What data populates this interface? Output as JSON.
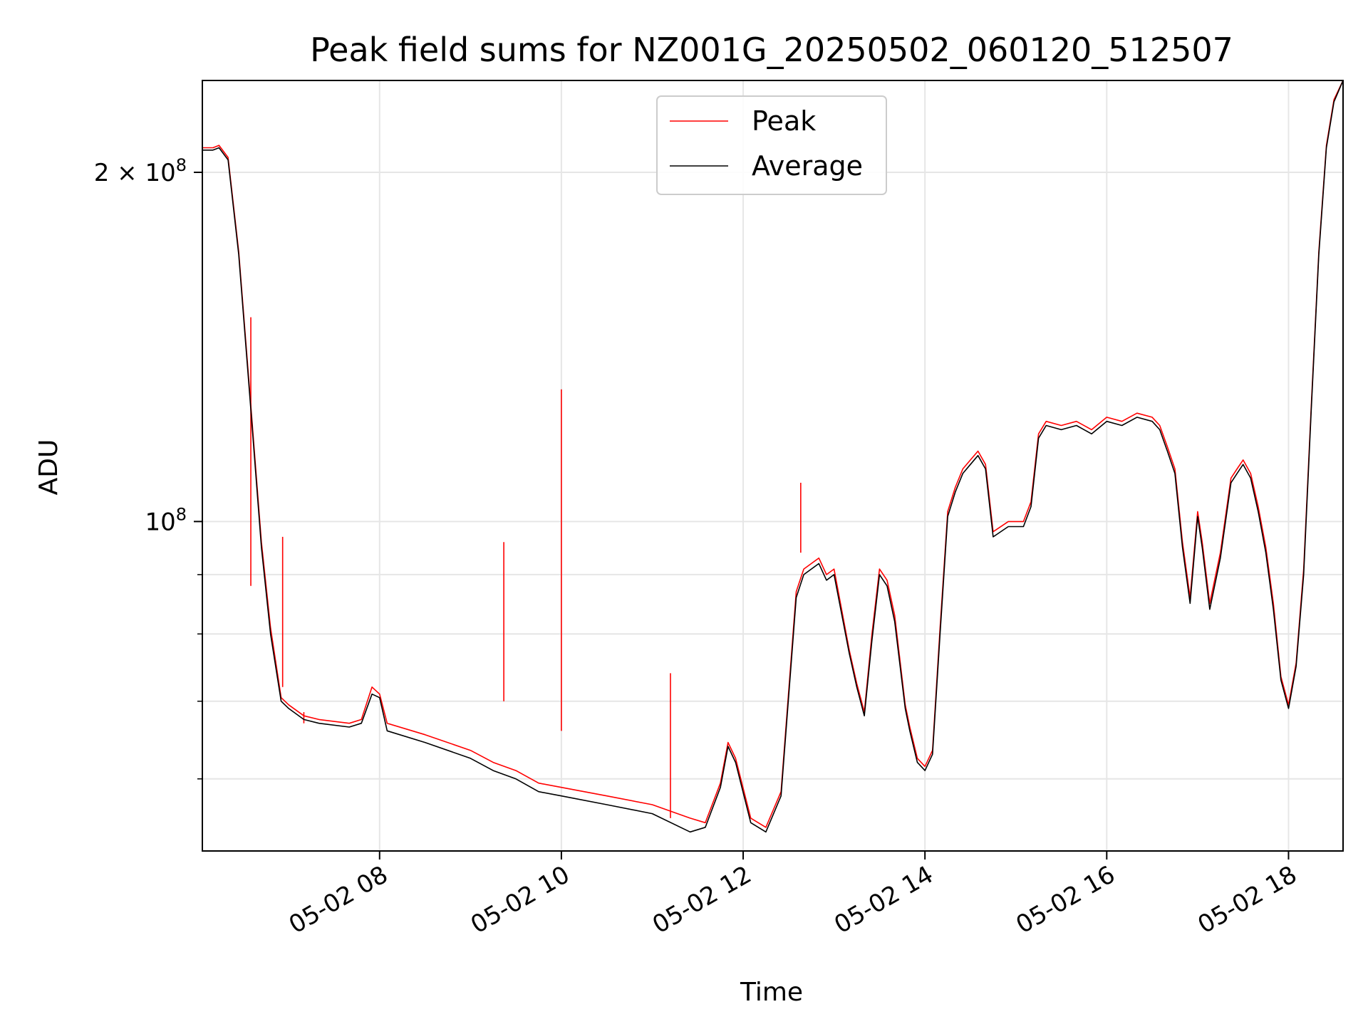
{
  "chart_data": {
    "type": "line",
    "title": "Peak field sums for NZ001G_20250502_060120_512507",
    "xlabel": "Time",
    "ylabel": "ADU",
    "y_scale": "log",
    "ylim": [
      52000000,
      240000000
    ],
    "xlim": [
      "05-02 06:03",
      "05-02 18:36"
    ],
    "grid": true,
    "legend": {
      "placement": "top-center",
      "entries": [
        "Peak",
        "Average"
      ]
    },
    "x_ticks": [
      {
        "value": "05-02 08:00",
        "label": "05-02 08"
      },
      {
        "value": "05-02 10:00",
        "label": "05-02 10"
      },
      {
        "value": "05-02 12:00",
        "label": "05-02 12"
      },
      {
        "value": "05-02 14:00",
        "label": "05-02 14"
      },
      {
        "value": "05-02 16:00",
        "label": "05-02 16"
      },
      {
        "value": "05-02 18:00",
        "label": "05-02 18"
      }
    ],
    "y_ticks": [
      {
        "value": 200000000,
        "label": "2 × 10",
        "exp": "8"
      },
      {
        "value": 100000000,
        "label": "10",
        "exp": "8"
      }
    ],
    "y_minor_ticks": [
      60000000,
      70000000,
      80000000,
      90000000
    ],
    "colors": {
      "peak": "#ff0000",
      "average": "#000000",
      "grid": "#e6e6e6"
    },
    "series": [
      {
        "name": "Average",
        "x": [
          "05-02 06:03",
          "05-02 06:10",
          "05-02 06:14",
          "05-02 06:20",
          "05-02 06:27",
          "05-02 06:35",
          "05-02 06:42",
          "05-02 06:48",
          "05-02 06:55",
          "05-02 07:00",
          "05-02 07:10",
          "05-02 07:20",
          "05-02 07:40",
          "05-02 07:48",
          "05-02 07:55",
          "05-02 08:00",
          "05-02 08:05",
          "05-02 08:30",
          "05-02 09:00",
          "05-02 09:15",
          "05-02 09:30",
          "05-02 09:45",
          "05-02 10:00",
          "05-02 10:30",
          "05-02 11:00",
          "05-02 11:25",
          "05-02 11:35",
          "05-02 11:45",
          "05-02 11:50",
          "05-02 11:55",
          "05-02 12:05",
          "05-02 12:15",
          "05-02 12:25",
          "05-02 12:35",
          "05-02 12:40",
          "05-02 12:45",
          "05-02 12:50",
          "05-02 12:55",
          "05-02 13:00",
          "05-02 13:10",
          "05-02 13:15",
          "05-02 13:20",
          "05-02 13:25",
          "05-02 13:30",
          "05-02 13:35",
          "05-02 13:40",
          "05-02 13:47",
          "05-02 13:50",
          "05-02 13:55",
          "05-02 14:00",
          "05-02 14:05",
          "05-02 14:10",
          "05-02 14:15",
          "05-02 14:20",
          "05-02 14:25",
          "05-02 14:30",
          "05-02 14:35",
          "05-02 14:40",
          "05-02 14:45",
          "05-02 14:55",
          "05-02 15:05",
          "05-02 15:10",
          "05-02 15:15",
          "05-02 15:20",
          "05-02 15:30",
          "05-02 15:40",
          "05-02 15:50",
          "05-02 16:00",
          "05-02 16:10",
          "05-02 16:20",
          "05-02 16:30",
          "05-02 16:35",
          "05-02 16:40",
          "05-02 16:45",
          "05-02 16:50",
          "05-02 16:55",
          "05-02 17:00",
          "05-02 17:03",
          "05-02 17:08",
          "05-02 17:15",
          "05-02 17:22",
          "05-02 17:26",
          "05-02 17:30",
          "05-02 17:35",
          "05-02 17:40",
          "05-02 17:45",
          "05-02 17:50",
          "05-02 17:55",
          "05-02 18:00",
          "05-02 18:05",
          "05-02 18:10",
          "05-02 18:15",
          "05-02 18:20",
          "05-02 18:25",
          "05-02 18:30",
          "05-02 18:36"
        ],
        "y": [
          209000000,
          209000000,
          210000000,
          205000000,
          170000000,
          125000000,
          95000000,
          80000000,
          70000000,
          69000000,
          67500000,
          67000000,
          66500000,
          67000000,
          71000000,
          70500000,
          66000000,
          64500000,
          62500000,
          61000000,
          60000000,
          58500000,
          58000000,
          57000000,
          56000000,
          54000000,
          54500000,
          59000000,
          64000000,
          62000000,
          55000000,
          54000000,
          58000000,
          86000000,
          90000000,
          91000000,
          92000000,
          89000000,
          90000000,
          77000000,
          72000000,
          68000000,
          79000000,
          90000000,
          88000000,
          82000000,
          69000000,
          66000000,
          62000000,
          61000000,
          63000000,
          80000000,
          101000000,
          106000000,
          110000000,
          112000000,
          114000000,
          111000000,
          97000000,
          99000000,
          99000000,
          103000000,
          118000000,
          121000000,
          120000000,
          121000000,
          119000000,
          122000000,
          121000000,
          123000000,
          122000000,
          120000000,
          115000000,
          110000000,
          95000000,
          85000000,
          101000000,
          95000000,
          84000000,
          93000000,
          108000000,
          110000000,
          112000000,
          109000000,
          102000000,
          94000000,
          84000000,
          73000000,
          69000000,
          75000000,
          90000000,
          125000000,
          170000000,
          210000000,
          230000000,
          240000000
        ]
      },
      {
        "name": "Peak",
        "x": [
          "05-02 06:03",
          "05-02 06:10",
          "05-02 06:14",
          "05-02 06:20",
          "05-02 06:27",
          "05-02 06:35",
          "05-02 06:42",
          "05-02 06:48",
          "05-02 06:55",
          "05-02 07:00",
          "05-02 07:10",
          "05-02 07:20",
          "05-02 07:40",
          "05-02 07:48",
          "05-02 07:55",
          "05-02 08:00",
          "05-02 08:05",
          "05-02 08:30",
          "05-02 09:00",
          "05-02 09:15",
          "05-02 09:30",
          "05-02 09:45",
          "05-02 10:00",
          "05-02 10:30",
          "05-02 11:00",
          "05-02 11:25",
          "05-02 11:35",
          "05-02 11:45",
          "05-02 11:50",
          "05-02 11:55",
          "05-02 12:05",
          "05-02 12:15",
          "05-02 12:25",
          "05-02 12:35",
          "05-02 12:40",
          "05-02 12:45",
          "05-02 12:50",
          "05-02 12:55",
          "05-02 13:00",
          "05-02 13:10",
          "05-02 13:15",
          "05-02 13:20",
          "05-02 13:25",
          "05-02 13:30",
          "05-02 13:35",
          "05-02 13:40",
          "05-02 13:47",
          "05-02 13:50",
          "05-02 13:55",
          "05-02 14:00",
          "05-02 14:05",
          "05-02 14:10",
          "05-02 14:15",
          "05-02 14:20",
          "05-02 14:25",
          "05-02 14:30",
          "05-02 14:35",
          "05-02 14:40",
          "05-02 14:45",
          "05-02 14:55",
          "05-02 15:05",
          "05-02 15:10",
          "05-02 15:15",
          "05-02 15:20",
          "05-02 15:30",
          "05-02 15:40",
          "05-02 15:50",
          "05-02 16:00",
          "05-02 16:10",
          "05-02 16:20",
          "05-02 16:30",
          "05-02 16:35",
          "05-02 16:40",
          "05-02 16:45",
          "05-02 16:50",
          "05-02 16:55",
          "05-02 17:00",
          "05-02 17:03",
          "05-02 17:08",
          "05-02 17:15",
          "05-02 17:22",
          "05-02 17:26",
          "05-02 17:30",
          "05-02 17:35",
          "05-02 17:40",
          "05-02 17:45",
          "05-02 17:50",
          "05-02 17:55",
          "05-02 18:00",
          "05-02 18:05",
          "05-02 18:10",
          "05-02 18:15",
          "05-02 18:20",
          "05-02 18:25",
          "05-02 18:30",
          "05-02 18:36"
        ],
        "y": [
          210000000,
          210000000,
          211000000,
          206000000,
          171000000,
          126000000,
          96000000,
          81000000,
          70500000,
          69500000,
          68000000,
          67500000,
          67000000,
          67500000,
          72000000,
          71000000,
          67000000,
          65500000,
          63500000,
          62000000,
          61000000,
          59500000,
          59000000,
          58000000,
          57000000,
          55500000,
          55000000,
          59500000,
          64500000,
          62500000,
          55500000,
          54500000,
          58500000,
          87000000,
          91000000,
          92000000,
          93000000,
          90000000,
          91000000,
          77500000,
          72500000,
          68500000,
          80000000,
          91000000,
          89000000,
          83000000,
          69500000,
          66500000,
          62500000,
          61500000,
          63500000,
          81000000,
          102000000,
          107000000,
          111000000,
          113000000,
          115000000,
          112000000,
          98000000,
          100000000,
          100000000,
          104000000,
          119000000,
          122000000,
          121000000,
          122000000,
          120000000,
          123000000,
          122000000,
          124000000,
          123000000,
          121000000,
          116000000,
          111000000,
          96000000,
          86000000,
          102000000,
          96000000,
          85000000,
          94000000,
          109000000,
          111000000,
          113000000,
          110000000,
          103000000,
          95000000,
          85000000,
          73500000,
          69500000,
          75500000,
          91000000,
          126000000,
          171000000,
          211000000,
          231000000,
          240000000
        ]
      }
    ],
    "peak_spikes": [
      {
        "x": "05-02 06:35",
        "peak": 150000000,
        "average": 88000000
      },
      {
        "x": "05-02 06:56",
        "peak": 97000000,
        "average": 72000000
      },
      {
        "x": "05-02 07:10",
        "peak": 68500000,
        "average": 67000000
      },
      {
        "x": "05-02 09:22",
        "peak": 96000000,
        "average": 70000000
      },
      {
        "x": "05-02 10:00",
        "peak": 130000000,
        "average": 66000000
      },
      {
        "x": "05-02 11:12",
        "peak": 74000000,
        "average": 55500000
      },
      {
        "x": "05-02 12:38",
        "peak": 108000000,
        "average": 94000000
      }
    ]
  }
}
